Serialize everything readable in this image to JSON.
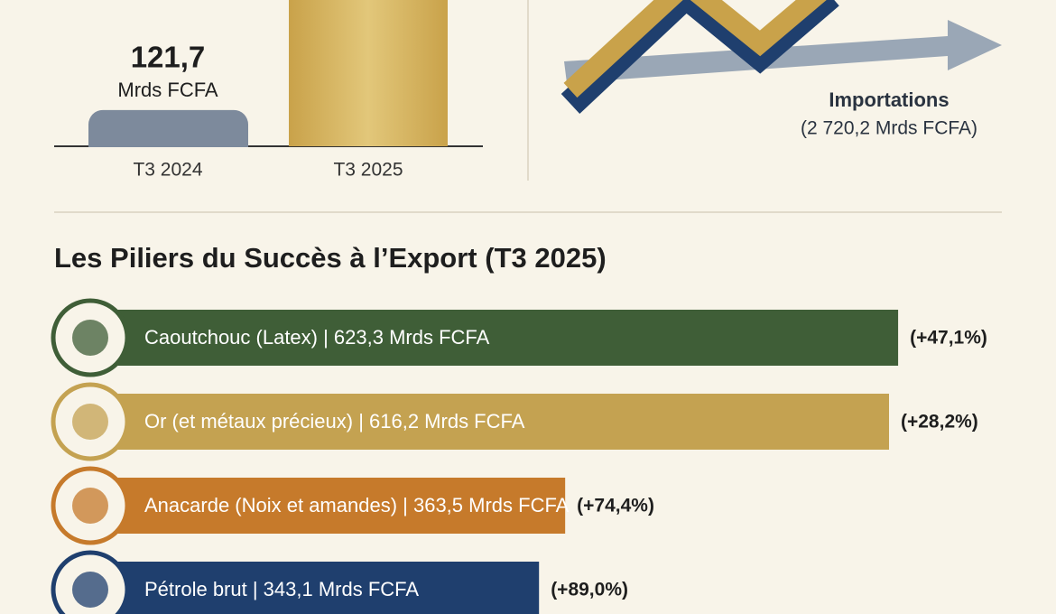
{
  "top_chart": {
    "bars": [
      {
        "category": "T3 2024",
        "value": 121.7,
        "value_label": "121,7",
        "unit": "Mrds FCFA",
        "color": "#7d8a9c"
      },
      {
        "category": "T3 2025",
        "color": "#d4b257"
      }
    ]
  },
  "imports": {
    "title": "Importations",
    "value_label": "(2 720,2 Mrds FCFA)"
  },
  "section": {
    "title": "Les Piliers du Succès à l’Export (T3 2025)"
  },
  "pillars": [
    {
      "label": "Caoutchouc (Latex) | 623,3 Mrds FCFA",
      "value": 623.3,
      "change": "(+47,1%)",
      "color": "#3f5e37"
    },
    {
      "label": "Or (et métaux précieux) | 616,2 Mrds FCFA",
      "value": 616.2,
      "change": "(+28,2%)",
      "color": "#c4a251"
    },
    {
      "label": "Anacarde (Noix et amandes) | 363,5 Mrds FCFA",
      "value": 363.5,
      "change": "(+74,4%)",
      "color": "#c67a2b"
    },
    {
      "label": "Pétrole brut | 343,1 Mrds FCFA",
      "value": 343.1,
      "change": "(+89,0%)",
      "color": "#1f3f6e"
    }
  ]
}
